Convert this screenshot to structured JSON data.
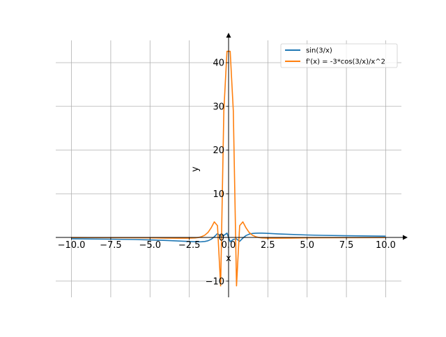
{
  "chart_data": {
    "type": "line",
    "title": "",
    "xlabel": "x",
    "ylabel": "y",
    "xlim": [
      -11,
      11
    ],
    "ylim": [
      -13.7,
      45.1
    ],
    "grid": true,
    "legend_position": "top-right",
    "x_ticks": [
      -10.0,
      -7.5,
      -5.0,
      -2.5,
      0.0,
      2.5,
      5.0,
      7.5,
      10.0
    ],
    "x_tick_labels": [
      "−10.0",
      "−7.5",
      "−5.0",
      "−2.5",
      "0.0",
      "2.5",
      "5.0",
      "7.5",
      "10.0"
    ],
    "y_ticks": [
      -10,
      0,
      10,
      20,
      30,
      40
    ],
    "y_tick_labels": [
      "−10",
      "0",
      "10",
      "20",
      "30",
      "40"
    ],
    "x": [
      -10,
      -7.5,
      -6,
      -5,
      -4,
      -3.13,
      -2.525,
      -2.121,
      -1.919,
      -1.717,
      -1.515,
      -1.313,
      -1.111,
      -0.909,
      -0.707,
      -0.505,
      -0.303,
      -0.101,
      0.101,
      0.303,
      0.505,
      0.707,
      0.909,
      1.111,
      1.313,
      1.515,
      1.717,
      1.919,
      2.121,
      2.525,
      3.13,
      4,
      5,
      6,
      7.5,
      10
    ],
    "series": [
      {
        "name": "sin(3/x)",
        "color": "#1f77b4",
        "values": [
          -0.296,
          -0.389,
          -0.479,
          -0.565,
          -0.682,
          -0.818,
          -0.928,
          -0.988,
          -1.0,
          -0.984,
          -0.917,
          -0.755,
          -0.427,
          0.158,
          0.891,
          0.335,
          0.458,
          0.99,
          -0.99,
          -0.458,
          -0.335,
          -0.891,
          -0.158,
          0.427,
          0.755,
          0.917,
          0.984,
          1.0,
          0.988,
          0.928,
          0.818,
          0.682,
          0.565,
          0.479,
          0.389,
          0.296
        ]
      },
      {
        "name": "f'(x) = -3*cos(3/x)/x^2",
        "color": "#ff7f0e",
        "values": [
          -0.029,
          -0.049,
          -0.073,
          -0.099,
          -0.137,
          -0.176,
          -0.175,
          -0.104,
          -0.006,
          0.18,
          0.52,
          1.14,
          2.2,
          3.58,
          2.69,
          -11.09,
          28.95,
          42.6,
          42.6,
          28.95,
          -11.09,
          2.69,
          3.58,
          2.2,
          1.14,
          0.52,
          0.18,
          -0.006,
          -0.104,
          -0.175,
          -0.176,
          -0.137,
          -0.099,
          -0.073,
          -0.049,
          -0.029
        ]
      }
    ]
  }
}
